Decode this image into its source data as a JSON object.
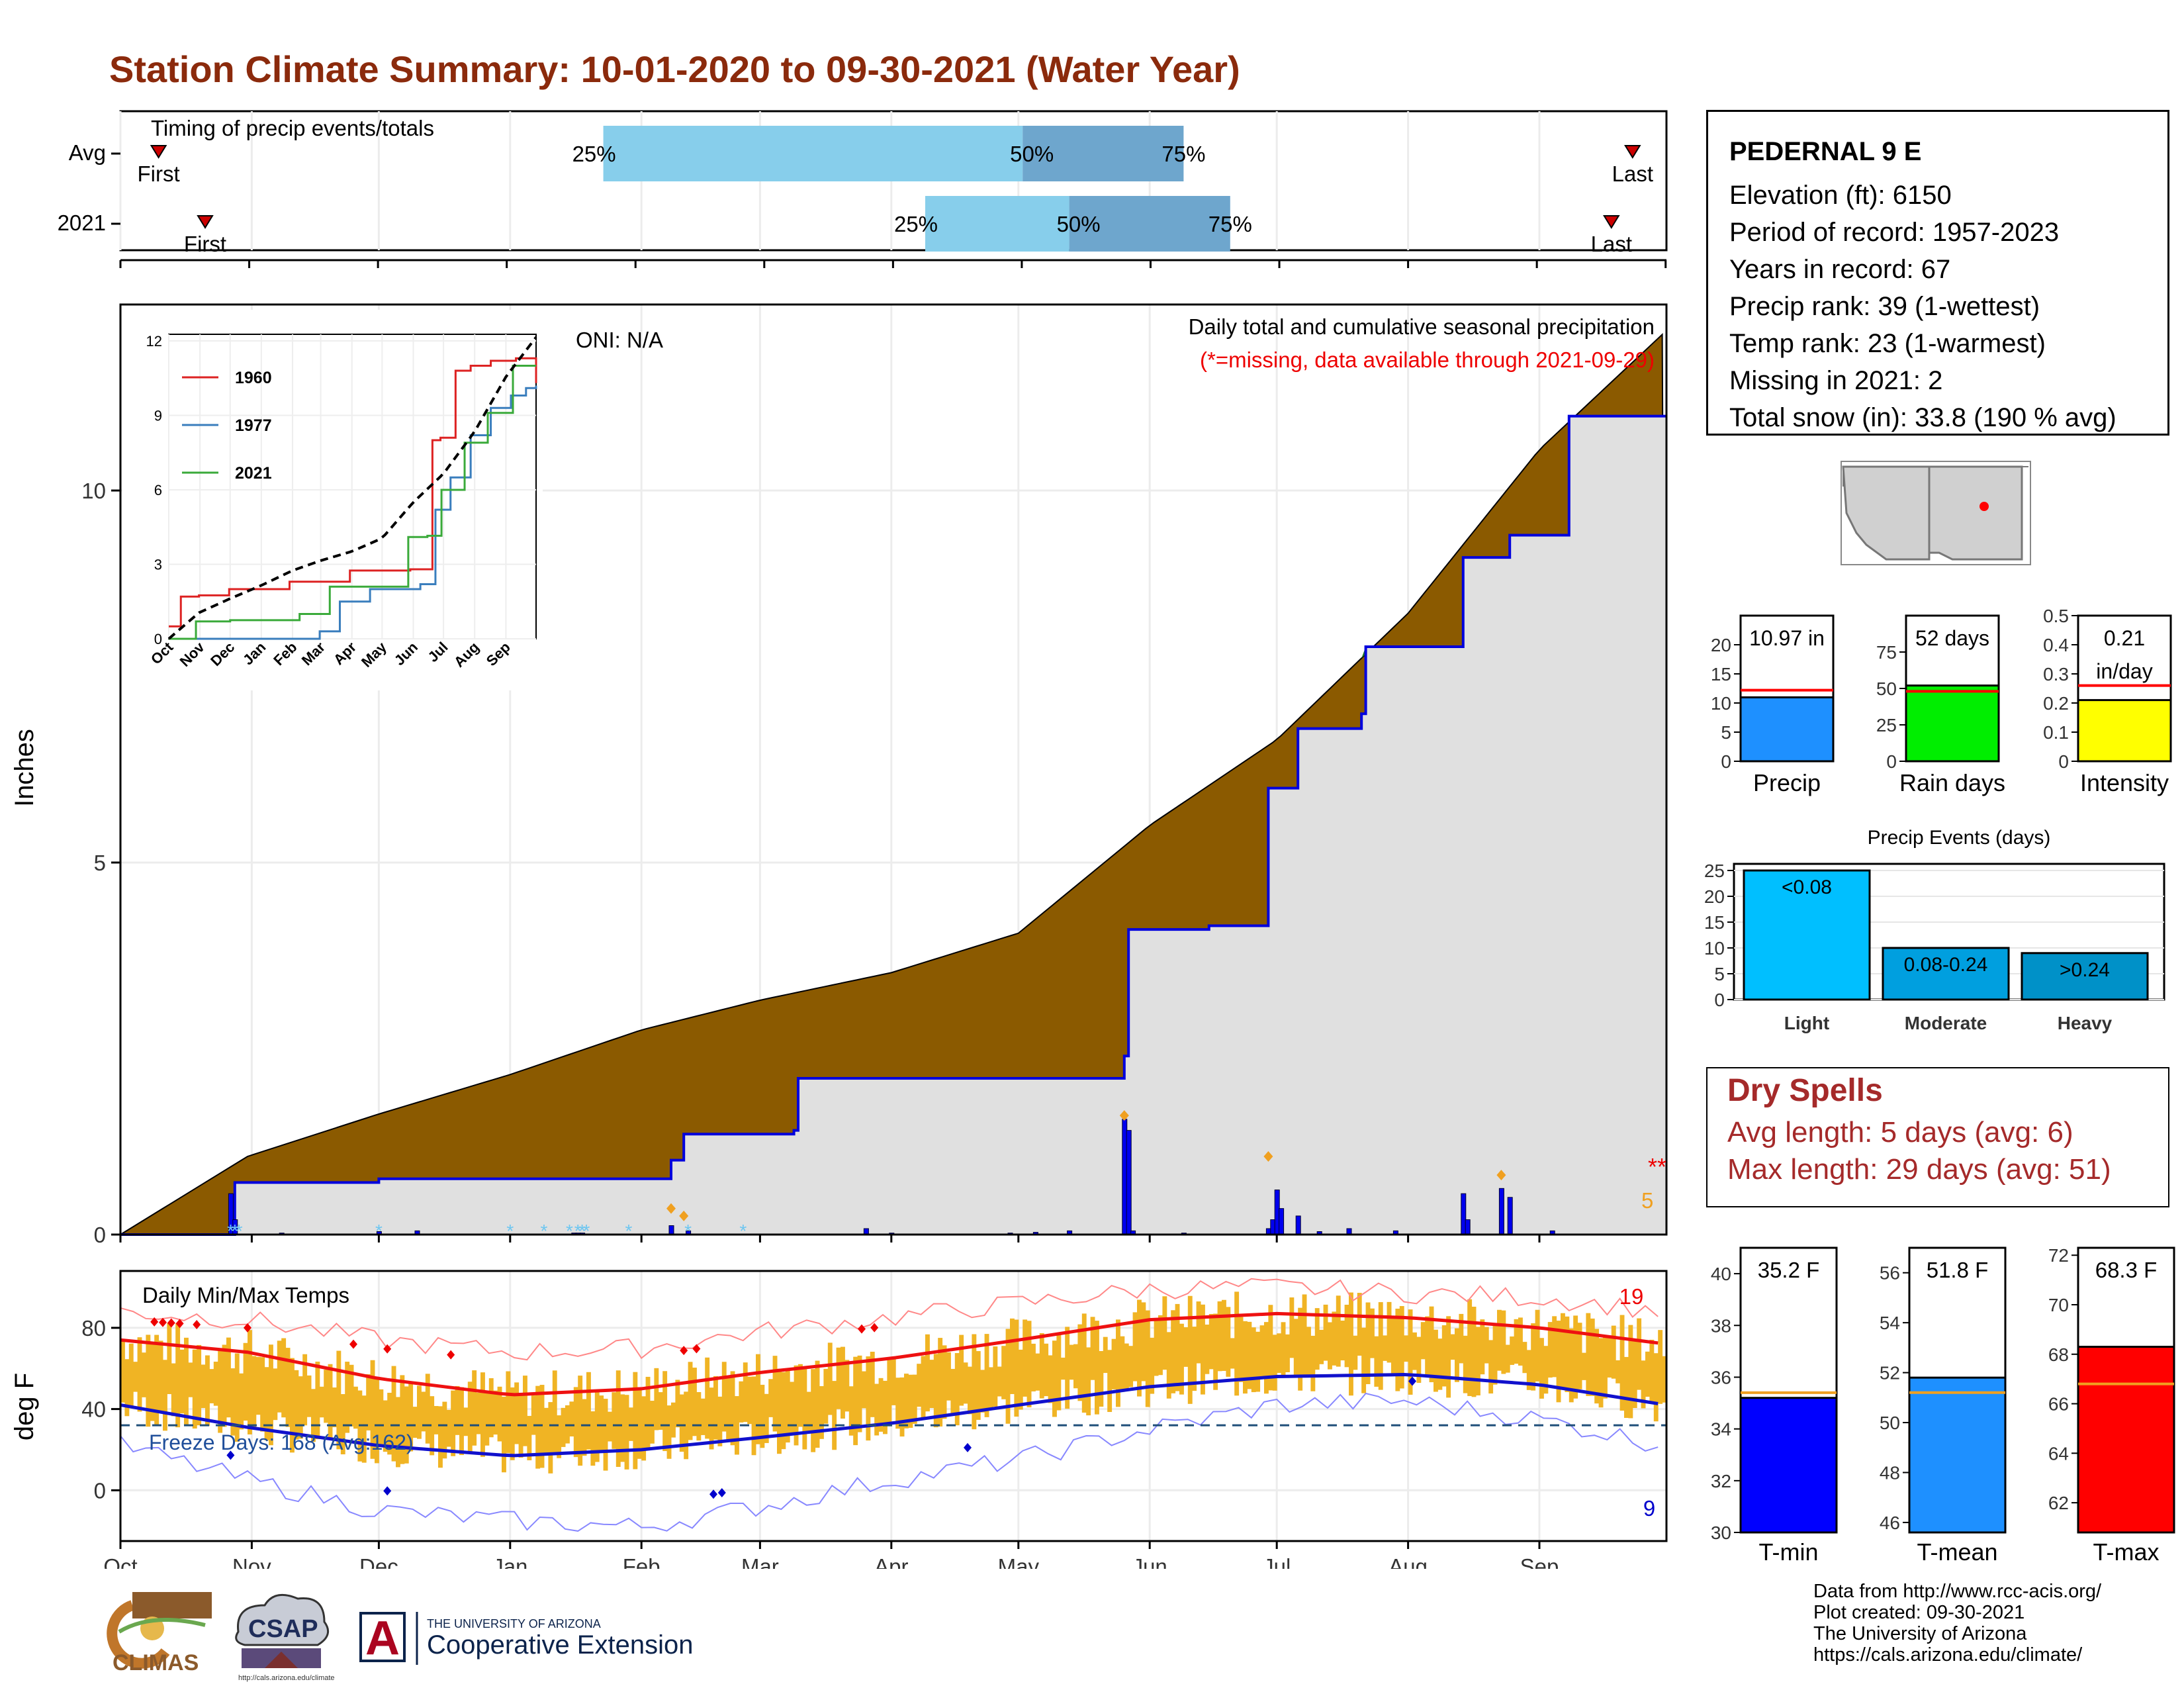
{
  "title": "Station Climate Summary: 10-01-2020 to 09-30-2021 (Water Year)",
  "timing": {
    "label": "Timing of precip events/totals",
    "rows": [
      {
        "name": "Avg",
        "first_doy": 9,
        "p25": 114,
        "p50": 213,
        "p75": 251,
        "last_doy": 357,
        "first_label": "First",
        "last_label": "Last"
      },
      {
        "name": "2021",
        "first_doy": 20,
        "p25": 190,
        "p50": 224,
        "p75": 262,
        "last_doy": 352,
        "first_label": "First",
        "last_label": "Last"
      }
    ],
    "pct_labels": [
      "25%",
      "50%",
      "75%"
    ],
    "colors": {
      "light": "#87ceeb",
      "dark": "#6ea6cd",
      "marker": "#cc0000"
    }
  },
  "station": {
    "name": "PEDERNAL 9 E",
    "lines": [
      "Elevation (ft): 6150",
      "Period of record: 1957-2023",
      "Years in record: 67",
      "Precip rank: 39 (1-wettest)",
      "Temp rank: 23 (1-warmest)",
      "Missing in 2021: 2",
      "Total snow (in): 33.8 (190 % avg)"
    ]
  },
  "months": [
    "Oct",
    "Nov",
    "Dec",
    "Jan",
    "Feb",
    "Mar",
    "Apr",
    "May",
    "Jun",
    "Jul",
    "Aug",
    "Sep"
  ],
  "precip_panel": {
    "ylabel": "Inches",
    "yticks": [
      0,
      5,
      10
    ],
    "annotation_title": "Daily total and cumulative seasonal precipitation",
    "annotation_missing": "(*=missing, data available through 2021-09-29)",
    "oni": "ONI: N/A",
    "missing_marker": "**",
    "count_label": "5",
    "colors": {
      "avg_fill": "#8b5a00",
      "above_fill": "#1e7a1e",
      "actual_fill": "#e0e0e0",
      "line": "#0000dd",
      "snow": "#6ec6f0",
      "record": "#f0a020"
    }
  },
  "chart_data": [
    {
      "type": "area",
      "title": "Daily total and cumulative seasonal precipitation",
      "ylabel": "Inches",
      "ylim": [
        0,
        12.5
      ],
      "xlim_days": [
        0,
        365
      ],
      "series": [
        {
          "name": "avg_cumulative",
          "x": [
            0,
            30,
            61,
            92,
            123,
            151,
            182,
            212,
            243,
            273,
            304,
            335,
            365
          ],
          "values": [
            0,
            1.05,
            1.62,
            2.15,
            2.75,
            3.15,
            3.52,
            4.05,
            5.5,
            6.65,
            8.35,
            10.55,
            12.15
          ]
        },
        {
          "name": "2021_cumulative",
          "x": [
            0,
            26,
            27,
            61,
            91,
            130,
            133,
            159,
            160,
            237,
            238,
            257,
            271,
            278,
            293,
            294,
            317,
            328,
            342,
            365
          ],
          "values": [
            0,
            0,
            0.7,
            0.75,
            0.75,
            1.0,
            1.35,
            1.4,
            2.1,
            2.4,
            4.1,
            4.15,
            6.0,
            6.8,
            7.0,
            7.9,
            9.1,
            9.4,
            11.0,
            11.0
          ]
        },
        {
          "name": "daily_precip",
          "x": [
            26,
            27,
            38,
            61,
            70,
            107,
            108,
            109,
            130,
            134,
            176,
            182,
            210,
            216,
            224,
            237,
            238,
            239,
            251,
            271,
            272,
            273,
            274,
            278,
            283,
            290,
            301,
            317,
            318,
            326,
            328,
            338
          ],
          "values": [
            0.55,
            0.2,
            0.02,
            0.04,
            0.05,
            0.02,
            0.02,
            0.02,
            0.12,
            0.05,
            0.08,
            0.02,
            0.02,
            0.03,
            0.05,
            1.55,
            1.4,
            0.05,
            0.02,
            0.08,
            0.2,
            0.6,
            0.35,
            0.25,
            0.04,
            0.08,
            0.05,
            0.55,
            0.2,
            0.62,
            0.5,
            0.05
          ]
        }
      ]
    },
    {
      "type": "line",
      "title": "",
      "inset": true,
      "ylim": [
        0,
        12
      ],
      "yticks": [
        0,
        3,
        6,
        9,
        12
      ],
      "xticks": [
        "Oct",
        "Nov",
        "Dec",
        "Jan",
        "Feb",
        "Mar",
        "Apr",
        "May",
        "Jun",
        "Jul",
        "Aug",
        "Sep"
      ],
      "series": [
        {
          "name": "1960",
          "color": "#dd2222",
          "x": [
            0,
            12,
            30,
            60,
            120,
            180,
            240,
            262,
            270,
            285,
            300,
            320,
            345,
            365
          ],
          "values": [
            0.5,
            1.7,
            1.75,
            2.0,
            2.3,
            2.75,
            2.8,
            8.0,
            8.1,
            10.8,
            11.0,
            11.2,
            11.3,
            10.3
          ]
        },
        {
          "name": "1977",
          "color": "#3a7ebd",
          "x": [
            0,
            110,
            150,
            170,
            200,
            250,
            265,
            280,
            300,
            320,
            340,
            355,
            365
          ],
          "values": [
            0,
            0,
            0.3,
            1.5,
            2.0,
            2.2,
            5.2,
            6.5,
            8.2,
            9.3,
            9.8,
            10.1,
            10.2
          ]
        },
        {
          "name": "2021",
          "color": "#3aaa3a",
          "x": [
            0,
            27,
            61,
            130,
            160,
            238,
            257,
            271,
            294,
            317,
            342,
            365
          ],
          "values": [
            0,
            0.7,
            0.75,
            1.0,
            2.1,
            4.1,
            4.15,
            6.0,
            7.9,
            9.1,
            11.0,
            11.0
          ]
        },
        {
          "name": "avg",
          "color": "#000000",
          "dashed": true,
          "x": [
            0,
            30,
            61,
            92,
            123,
            151,
            182,
            212,
            243,
            273,
            304,
            335,
            365
          ],
          "values": [
            0,
            1.05,
            1.62,
            2.15,
            2.75,
            3.15,
            3.52,
            4.05,
            5.5,
            6.65,
            8.35,
            10.55,
            12.15
          ]
        }
      ]
    },
    {
      "type": "bar",
      "title": "",
      "categories": [
        "Precip"
      ],
      "values": [
        10.97
      ],
      "avg": 12.2,
      "ylim": [
        0,
        25
      ],
      "yticks": [
        0,
        5,
        10,
        15,
        20
      ],
      "value_label": "10.97 in",
      "color": "#1e90ff"
    },
    {
      "type": "bar",
      "title": "",
      "categories": [
        "Rain days"
      ],
      "values": [
        52
      ],
      "avg": 48,
      "ylim": [
        0,
        100
      ],
      "yticks": [
        0,
        25,
        50,
        75
      ],
      "value_label": "52 days",
      "color": "#00ee00"
    },
    {
      "type": "bar",
      "title": "",
      "categories": [
        "Intensity"
      ],
      "values": [
        0.21
      ],
      "avg": 0.26,
      "ylim": [
        0,
        0.5
      ],
      "yticks": [
        0.0,
        0.1,
        0.2,
        0.3,
        0.4,
        0.5
      ],
      "value_label_1": "0.21",
      "value_label_2": "in/day",
      "color": "#ffff00"
    },
    {
      "type": "bar",
      "title": "Precip Events (days)",
      "categories": [
        "Light",
        "Moderate",
        "Heavy"
      ],
      "values": [
        25,
        10,
        9
      ],
      "bar_labels": [
        "<0.08",
        "0.08-0.24",
        ">0.24"
      ],
      "ylim": [
        0,
        25
      ],
      "yticks": [
        0,
        5,
        10,
        15,
        20,
        25
      ],
      "colors": [
        "#00bfff",
        "#009fdf",
        "#0091c8"
      ]
    },
    {
      "type": "line",
      "title": "Daily Min/Max Temps",
      "ylabel": "deg F",
      "ylim": [
        -25,
        108
      ],
      "yticks": [
        0,
        40,
        80
      ],
      "freeze_label": "Freeze Days: 168 (Avg:162)",
      "freeze_line": 32,
      "record_high_count": "19",
      "record_low_count": "9",
      "series": [
        {
          "name": "avg_max",
          "color": "#ee1111",
          "x": [
            0,
            30,
            61,
            92,
            123,
            151,
            182,
            212,
            243,
            273,
            304,
            335,
            365
          ],
          "values": [
            74,
            68,
            55,
            47,
            50,
            58,
            65,
            74,
            84,
            87,
            85,
            80,
            72
          ]
        },
        {
          "name": "avg_min",
          "color": "#1111cc",
          "x": [
            0,
            30,
            61,
            92,
            123,
            151,
            182,
            212,
            243,
            273,
            304,
            335,
            365
          ],
          "values": [
            42,
            31,
            22,
            17,
            20,
            26,
            33,
            42,
            51,
            56,
            57,
            52,
            42
          ]
        },
        {
          "name": "record_max",
          "color": "#ff8888",
          "x": [
            0,
            30,
            61,
            92,
            123,
            151,
            182,
            212,
            243,
            273,
            304,
            335,
            365
          ],
          "values": [
            88,
            84,
            74,
            68,
            70,
            78,
            85,
            92,
            99,
            100,
            97,
            95,
            88
          ]
        },
        {
          "name": "record_min",
          "color": "#8888ff",
          "x": [
            0,
            30,
            61,
            92,
            123,
            151,
            182,
            212,
            243,
            273,
            304,
            335,
            365
          ],
          "values": [
            22,
            5,
            -10,
            -15,
            -18,
            -8,
            5,
            15,
            30,
            42,
            44,
            35,
            22
          ]
        }
      ]
    },
    {
      "type": "bar",
      "title": "",
      "categories": [
        "T-min"
      ],
      "values": [
        35.2
      ],
      "avg": 35.4,
      "ylim": [
        30,
        41
      ],
      "yticks": [
        30,
        32,
        34,
        36,
        38,
        40
      ],
      "value_label": "35.2 F",
      "color": "#0000ff"
    },
    {
      "type": "bar",
      "title": "",
      "categories": [
        "T-mean"
      ],
      "values": [
        51.8
      ],
      "avg": 51.2,
      "ylim": [
        45.6,
        57
      ],
      "yticks": [
        46,
        48,
        50,
        52,
        54,
        56
      ],
      "value_label": "51.8 F",
      "color": "#1e90ff"
    },
    {
      "type": "bar",
      "title": "",
      "categories": [
        "T-max"
      ],
      "values": [
        68.3
      ],
      "avg": 66.8,
      "ylim": [
        60.8,
        72.3
      ],
      "yticks": [
        62,
        64,
        66,
        68,
        70,
        72
      ],
      "value_label": "68.3 F",
      "color": "#ff0000"
    }
  ],
  "dry_spells": {
    "title": "Dry Spells",
    "avg_line": "Avg length: 5 days (avg: 6)",
    "max_line": "Max length: 29 days (avg: 51)"
  },
  "credits": {
    "line1": "Data from http://www.rcc-acis.org/",
    "line2": "Plot created: 09-30-2021",
    "line3": "The University of Arizona",
    "line4": "https://cals.arizona.edu/climate/"
  },
  "logos": {
    "climas": "CLIMAS",
    "csap": "CSAP",
    "csap_url": "http://cals.arizona.edu/climate",
    "ua_small": "THE UNIVERSITY OF ARIZONA",
    "ua_big": "Cooperative Extension",
    "ua_letter": "A"
  }
}
